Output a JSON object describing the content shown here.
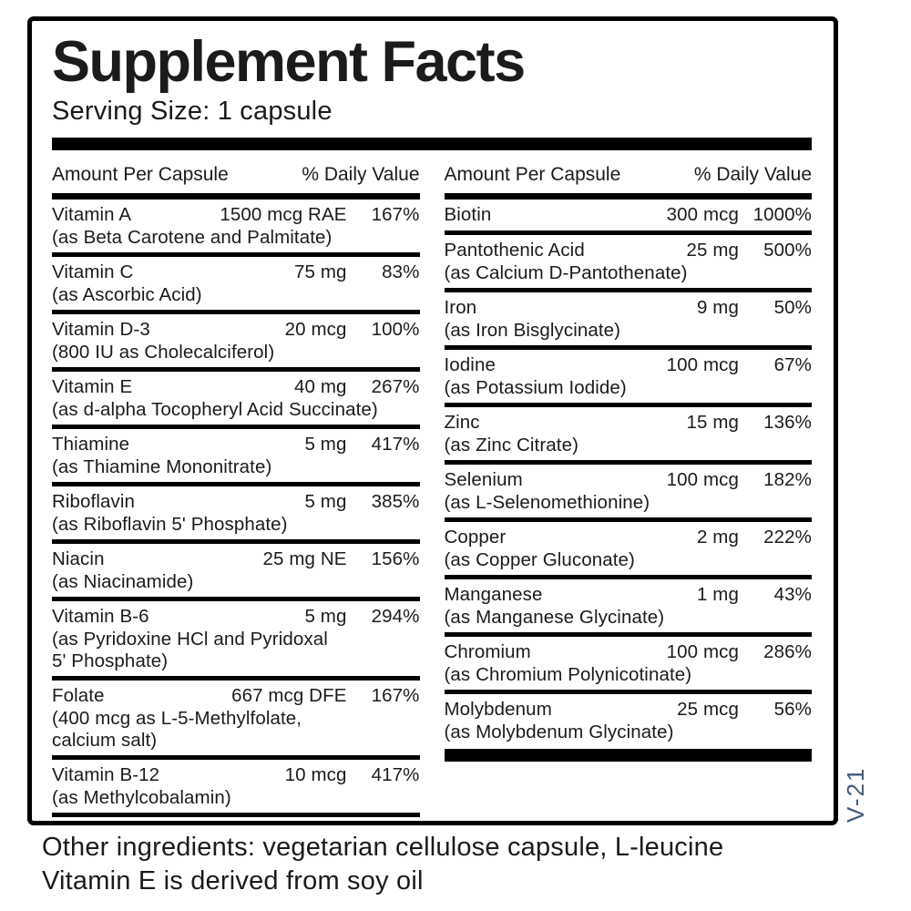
{
  "panel": {
    "title": "Supplement Facts",
    "serving_size": "Serving Size: 1 capsule"
  },
  "columns": [
    {
      "header": {
        "amount": "Amount Per Capsule",
        "dv": "% Daily Value"
      },
      "rows": [
        {
          "name": "Vitamin A",
          "amount": "1500 mcg RAE",
          "dv": "167%",
          "detail": "(as Beta Carotene and Palmitate)"
        },
        {
          "name": "Vitamin C",
          "amount": "75 mg",
          "dv": "83%",
          "detail": "(as Ascorbic Acid)"
        },
        {
          "name": "Vitamin D-3",
          "amount": "20 mcg",
          "dv": "100%",
          "detail": "(800 IU as Cholecalciferol)"
        },
        {
          "name": "Vitamin E",
          "amount": "40 mg",
          "dv": "267%",
          "detail": "(as d-alpha Tocopheryl Acid Succinate)"
        },
        {
          "name": "Thiamine",
          "amount": "5 mg",
          "dv": "417%",
          "detail": "(as Thiamine Mononitrate)"
        },
        {
          "name": "Riboflavin",
          "amount": "5 mg",
          "dv": "385%",
          "detail": "(as Riboflavin 5' Phosphate)"
        },
        {
          "name": "Niacin",
          "amount": "25 mg NE",
          "dv": "156%",
          "detail": "(as Niacinamide)"
        },
        {
          "name": "Vitamin B-6",
          "amount": "5 mg",
          "dv": "294%",
          "detail": "(as Pyridoxine HCl and Pyridoxal\n5' Phosphate)"
        },
        {
          "name": "Folate",
          "amount": "667 mcg DFE",
          "dv": "167%",
          "detail": "(400 mcg as L-5-Methylfolate,\ncalcium salt)"
        },
        {
          "name": "Vitamin B-12",
          "amount": "10 mcg",
          "dv": "417%",
          "detail": "(as Methylcobalamin)"
        }
      ]
    },
    {
      "header": {
        "amount": "Amount Per Capsule",
        "dv": "% Daily Value"
      },
      "rows": [
        {
          "name": "Biotin",
          "amount": "300 mcg",
          "dv": "1000%",
          "detail": ""
        },
        {
          "name": "Pantothenic Acid",
          "amount": "25 mg",
          "dv": "500%",
          "detail": "(as Calcium D-Pantothenate)"
        },
        {
          "name": "Iron",
          "amount": "9 mg",
          "dv": "50%",
          "detail": "(as Iron Bisglycinate)"
        },
        {
          "name": "Iodine",
          "amount": "100 mcg",
          "dv": "67%",
          "detail": "(as Potassium Iodide)"
        },
        {
          "name": "Zinc",
          "amount": "15 mg",
          "dv": "136%",
          "detail": "(as Zinc Citrate)"
        },
        {
          "name": "Selenium",
          "amount": "100 mcg",
          "dv": "182%",
          "detail": "(as L-Selenomethionine)"
        },
        {
          "name": "Copper",
          "amount": "2 mg",
          "dv": "222%",
          "detail": "(as Copper Gluconate)"
        },
        {
          "name": "Manganese",
          "amount": "1 mg",
          "dv": "43%",
          "detail": "(as Manganese Glycinate)"
        },
        {
          "name": "Chromium",
          "amount": "100 mcg",
          "dv": "286%",
          "detail": "(as Chromium Polynicotinate)"
        },
        {
          "name": "Molybdenum",
          "amount": "25 mcg",
          "dv": "56%",
          "detail": "(as Molybdenum Glycinate)"
        }
      ]
    }
  ],
  "footer": {
    "line1": "Other ingredients: vegetarian cellulose capsule, L-leucine",
    "line2": "Vitamin E is derived from soy oil"
  },
  "side_code": "V-21",
  "colors": {
    "ink": "#1b1b19",
    "bar": "#000000",
    "side_code": "#44587a"
  }
}
